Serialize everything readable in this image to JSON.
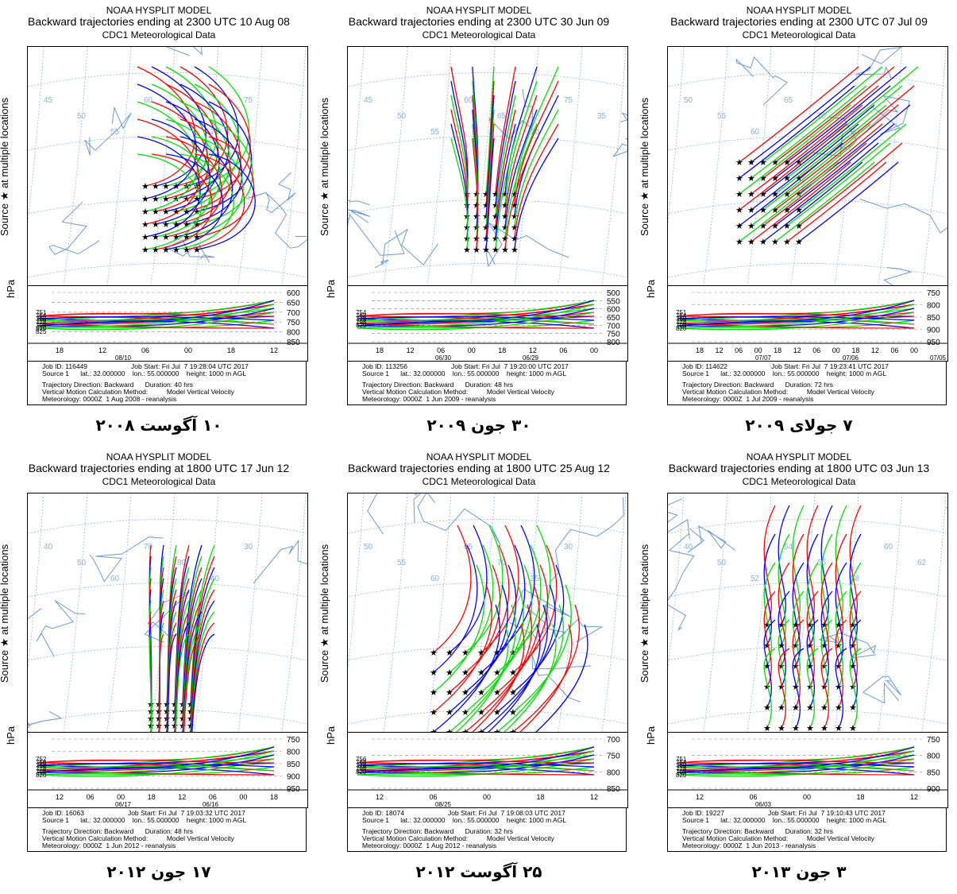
{
  "colors": {
    "red": "#ff0000",
    "blue": "#0000ff",
    "green": "#00e000",
    "border": "#6a9bd8",
    "grid": "#8aaed8"
  },
  "panels": [
    {
      "title1": "NOAA HYSPLIT MODEL",
      "title2": "Backward trajectories ending at 2300 UTC 10 Aug 08",
      "title3": "CDC1 Meteorological Data",
      "ylabel": "Source ★ at multiple locations",
      "hpa": "hPa",
      "map_lat_labels": [
        "45",
        "50",
        "55",
        "60",
        "65",
        "70",
        "75"
      ],
      "pressure_ticks": [
        "600",
        "650",
        "700",
        "750",
        "800",
        "850"
      ],
      "time_ticks": [
        "18",
        "12",
        "06",
        "00",
        "18",
        "12"
      ],
      "date_ticks": [
        "08/10"
      ],
      "source_pressures": [
        "751",
        "754",
        "768",
        "778",
        "798",
        "820",
        "825"
      ],
      "job": "Job ID: 116449",
      "job_start": "Job Start: Fri Jul  7 19:28:04 UTC 2017",
      "source": "Source 1      lat.: 32.000000    lon.: 55.000000    height: 1000 m AGL",
      "direction": "Trajectory Direction: Backward      Duration: 40 hrs",
      "method": "Vertical Motion Calculation Method:          Model Vertical Velocity",
      "meteo": "Meteorology: 0000Z  1 Aug 2008 - reanalysis",
      "caption": "۱۰ آگوست ۲۰۰۸"
    },
    {
      "title1": "NOAA HYSPLIT MODEL",
      "title2": "Backward trajectories ending at 2300 UTC 30 Jun 09",
      "title3": "CDC1 Meteorological Data",
      "ylabel": "Source ★ at multiple locations",
      "hpa": "hPa",
      "map_lat_labels": [
        "45",
        "50",
        "55",
        "60",
        "65",
        "70",
        "75",
        "35"
      ],
      "pressure_ticks": [
        "500",
        "550",
        "600",
        "650",
        "700",
        "750",
        "800"
      ],
      "time_ticks": [
        "18",
        "12",
        "06",
        "00",
        "18",
        "12",
        "06",
        "00"
      ],
      "date_ticks": [
        "06/30",
        "06/29"
      ],
      "source_pressures": [
        "754",
        "768",
        "778",
        "798",
        "820"
      ],
      "job": "Job ID: 113256",
      "job_start": "Job Start: Fri Jul  7 19:20:00 UTC 2017",
      "source": "Source 1      lat.: 32.000000    lon.: 55.000000    height: 1000 m AGL",
      "direction": "Trajectory Direction: Backward      Duration: 48 hrs",
      "method": "Vertical Motion Calculation Method:          Model Vertical Velocity",
      "meteo": "Meteorology: 0000Z  1 Jun 2009 - reanalysis",
      "caption": "۳۰ جون ۲۰۰۹"
    },
    {
      "title1": "NOAA HYSPLIT MODEL",
      "title2": "Backward trajectories ending at 2300 UTC 07 Jul 09",
      "title3": "CDC1 Meteorological Data",
      "ylabel": "Source ★ at multiple locations",
      "hpa": "hPa",
      "map_lat_labels": [
        "50",
        "55",
        "60",
        "65",
        "70",
        "30"
      ],
      "pressure_ticks": [
        "750",
        "800",
        "850",
        "900",
        "950"
      ],
      "time_ticks": [
        "18",
        "12",
        "06",
        "00",
        "18",
        "12",
        "06",
        "00",
        "18",
        "12",
        "06",
        "00"
      ],
      "date_ticks": [
        "07/07",
        "07/06",
        "07/05"
      ],
      "source_pressures": [
        "751",
        "754",
        "768",
        "778",
        "798",
        "820"
      ],
      "job": "Job ID: 114622",
      "job_start": "Job Start: Fri Jul  7 19:23:41 UTC 2017",
      "source": "Source 1      lat.: 32.000000    lon.: 55.000000    height: 1000 m AGL",
      "direction": "Trajectory Direction: Backward      Duration: 72 hrs",
      "method": "Vertical Motion Calculation Method:          Model Vertical Velocity",
      "meteo": "Meteorology: 0000Z  1 Jul 2009 - reanalysis",
      "caption": "۷ جولای ۲۰۰۹"
    },
    {
      "title1": "NOAA HYSPLIT MODEL",
      "title2": "Backward trajectories ending at 1800 UTC 17 Jun 12",
      "title3": "CDC1 Meteorological Data",
      "ylabel": "Source ★ at multiple locations",
      "hpa": "hPa",
      "map_lat_labels": [
        "40",
        "50",
        "60",
        "70",
        "80",
        "40",
        "30"
      ],
      "pressure_ticks": [
        "750",
        "800",
        "850",
        "900",
        "950"
      ],
      "time_ticks": [
        "12",
        "06",
        "00",
        "18",
        "12",
        "06",
        "00",
        "18"
      ],
      "date_ticks": [
        "06/17",
        "06/16"
      ],
      "source_pressures": [
        "752",
        "756",
        "768",
        "778",
        "798",
        "820"
      ],
      "job": "Job ID: 16063",
      "job_start": "Job Start: Fri Jul  7 19:03:32 UTC 2017",
      "source": "Source 1      lat.: 32.000000    lon.: 55.000000    height: 1000 m AGL",
      "direction": "Trajectory Direction: Backward      Duration: 48 hrs",
      "method": "Vertical Motion Calculation Method:          Model Vertical Velocity",
      "meteo": "Meteorology: 0000Z  1 Jun 2012 - reanalysis",
      "caption": "۱۷ جون ۲۰۱۲"
    },
    {
      "title1": "NOAA HYSPLIT MODEL",
      "title2": "Backward trajectories ending at 1800 UTC 25 Aug 12",
      "title3": "CDC1 Meteorological Data",
      "ylabel": "Source ★ at multiple locations",
      "hpa": "hPa",
      "map_lat_labels": [
        "50",
        "55",
        "60",
        "65",
        "70",
        "35",
        "30"
      ],
      "pressure_ticks": [
        "700",
        "750",
        "800",
        "850"
      ],
      "time_ticks": [
        "12",
        "06",
        "00",
        "18",
        "12"
      ],
      "date_ticks": [
        "08/25"
      ],
      "source_pressures": [
        "756",
        "768",
        "778",
        "798",
        "820"
      ],
      "job": "Job ID: 18074",
      "job_start": "Job Start: Fri Jul  7 19:08:03 UTC 2017",
      "source": "Source 1      lat.: 32.000000    lon.: 55.000000    height: 1000 m AGL",
      "direction": "Trajectory Direction: Backward      Duration: 32 hrs",
      "method": "Vertical Motion Calculation Method:          Model Vertical Velocity",
      "meteo": "Meteorology: 0000Z  1 Aug 2012 - reanalysis",
      "caption": "۲۵ آگوست ۲۰۱۲"
    },
    {
      "title1": "NOAA HYSPLIT MODEL",
      "title2": "Backward trajectories ending at 1800 UTC 03 Jun 13",
      "title3": "CDC1 Meteorological Data",
      "ylabel": "Source ★ at multiple locations",
      "hpa": "hPa",
      "map_lat_labels": [
        "40",
        "50",
        "52",
        "54",
        "56",
        "58",
        "60",
        "62",
        "64"
      ],
      "pressure_ticks": [
        "750",
        "800",
        "850",
        "900"
      ],
      "time_ticks": [
        "12",
        "06",
        "00",
        "18",
        "12"
      ],
      "date_ticks": [
        "06/03"
      ],
      "source_pressures": [
        "751",
        "754",
        "768",
        "778",
        "798",
        "820"
      ],
      "job": "Job ID: 19227",
      "job_start": "Job Start: Fri Jul  7 19:10:43 UTC 2017",
      "source": "Source 1      lat.: 32.000000    lon.: 55.000000    height: 1000 m AGL",
      "direction": "Trajectory Direction: Backward      Duration: 32 hrs",
      "method": "Vertical Motion Calculation Method:          Model Vertical Velocity",
      "meteo": "Meteorology: 0000Z  1 Jun 2013 - reanalysis",
      "caption": "۳ جون ۲۰۱۳"
    }
  ]
}
